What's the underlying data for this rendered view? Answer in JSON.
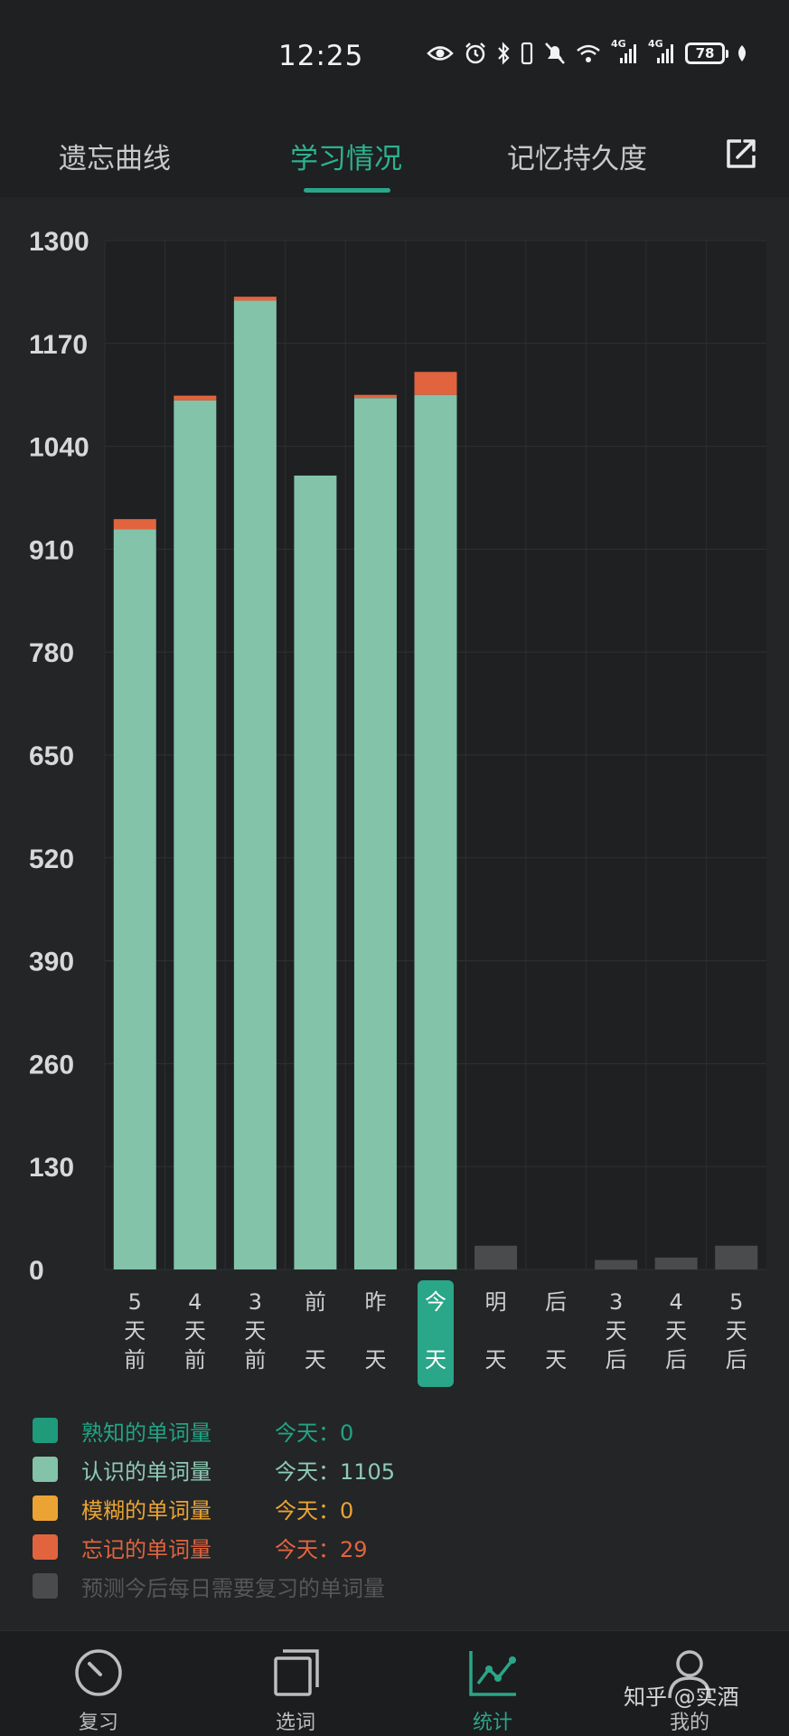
{
  "status_bar": {
    "time": "12:25",
    "network_label_1": "4G",
    "network_label_2": "4G",
    "battery": "78",
    "icons": [
      "eye-icon",
      "alarm-icon",
      "bluetooth-icon",
      "vibrate-icon",
      "mute-bell-icon",
      "wifi-icon",
      "signal-icon",
      "signal-icon",
      "battery-icon",
      "leaf-icon"
    ]
  },
  "tabs": [
    {
      "label": "遗忘曲线",
      "active": false
    },
    {
      "label": "学习情况",
      "active": true
    },
    {
      "label": "记忆持久度",
      "active": false
    }
  ],
  "header": {
    "share_icon": "share-icon"
  },
  "colors": {
    "familiar": "#1f9a7b",
    "known": "#82c3aa",
    "fuzzy": "#eba433",
    "forgotten": "#e1643e",
    "predicted": "#4a4b4d",
    "accent": "#2aa689"
  },
  "chart_data": {
    "type": "bar",
    "stacked": true,
    "categories": [
      "5\n天\n前",
      "4\n天\n前",
      "3\n天\n前",
      "前\n\n天",
      "昨\n\n天",
      "今\n\n天",
      "明\n\n天",
      "后\n\n天",
      "3\n天\n后",
      "4\n天\n后",
      "5\n天\n后"
    ],
    "highlighted_category": 5,
    "y_ticks": [
      0,
      130,
      260,
      390,
      520,
      650,
      780,
      910,
      1040,
      1170,
      1300
    ],
    "ylim": [
      0,
      1300
    ],
    "grid": true,
    "series": [
      {
        "name": "熟知的单词量",
        "color": "#1f9a7b",
        "values": [
          0,
          0,
          0,
          0,
          0,
          0,
          null,
          null,
          null,
          null,
          null
        ]
      },
      {
        "name": "认识的单词量",
        "color": "#82c3aa",
        "values": [
          935,
          1098,
          1224,
          1003,
          1101,
          1105,
          null,
          null,
          null,
          null,
          null
        ]
      },
      {
        "name": "模糊的单词量",
        "color": "#eba433",
        "values": [
          0,
          0,
          0,
          0,
          0,
          0,
          null,
          null,
          null,
          null,
          null
        ]
      },
      {
        "name": "忘记的单词量",
        "color": "#e1643e",
        "values": [
          13,
          6,
          5,
          0,
          4,
          29,
          null,
          null,
          null,
          null,
          null
        ]
      },
      {
        "name": "预测今后每日需要复习的单词量",
        "color": "#4a4b4d",
        "values": [
          null,
          null,
          null,
          null,
          null,
          null,
          30,
          0,
          12,
          15,
          30
        ]
      }
    ]
  },
  "legend": [
    {
      "label": "熟知的单词量",
      "value": "今天：0",
      "color": "#1f9a7b",
      "text_color": "#23a383"
    },
    {
      "label": "认识的单词量",
      "value": "今天：1105",
      "color": "#82c3aa",
      "text_color": "#8ecbb3"
    },
    {
      "label": "模糊的单词量",
      "value": "今天：0",
      "color": "#eba433",
      "text_color": "#eba433"
    },
    {
      "label": "忘记的单词量",
      "value": "今天：29",
      "color": "#e1643e",
      "text_color": "#e1643e"
    },
    {
      "label": "预测今后每日需要复习的单词量",
      "value": "",
      "color": "#4a4b4d",
      "text_color": "#555759"
    }
  ],
  "bottom_nav": [
    {
      "label": "复习",
      "icon": "speedometer-icon",
      "active": false
    },
    {
      "label": "选词",
      "icon": "stacked-cards-icon",
      "active": false
    },
    {
      "label": "统计",
      "icon": "line-chart-icon",
      "active": true
    },
    {
      "label": "我的",
      "icon": "user-icon",
      "active": false
    }
  ],
  "watermark": "知乎 @实酒"
}
